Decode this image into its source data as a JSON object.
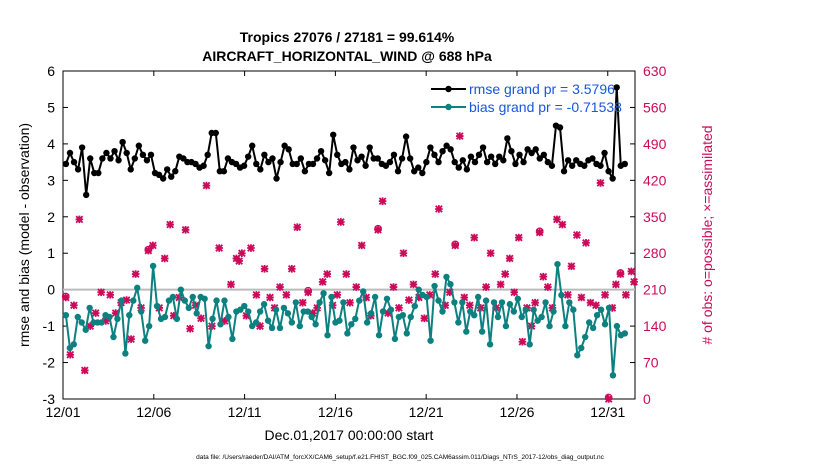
{
  "chart_data": {
    "type": "line",
    "title": "Tropics 27076 / 27181 = 99.614%",
    "subtitle": "AIRCRAFT_HORIZONTAL_WIND @ 688 hPa",
    "xlabel": "Dec.01,2017 00:00:00 start",
    "ylabel_left": "rmse and bias (model - observation)",
    "ylabel_right": "# of obs: o=possible; ×=assimilated",
    "xlim": [
      0,
      31.5
    ],
    "ylim_left": [
      -3,
      6
    ],
    "ylim_right": [
      0,
      630
    ],
    "x_ticks": [
      0,
      5,
      10,
      15,
      20,
      25,
      30
    ],
    "x_tick_labels": [
      "12/01",
      "12/06",
      "12/11",
      "12/16",
      "12/21",
      "12/26",
      "12/31"
    ],
    "y_ticks_left": [
      -3,
      -2,
      -1,
      0,
      1,
      2,
      3,
      4,
      5,
      6
    ],
    "y_tick_labels_left": [
      "-3",
      "-2",
      "-1",
      "0",
      "1",
      "2",
      "3",
      "4",
      "5",
      "6"
    ],
    "y_ticks_right": [
      0,
      70,
      140,
      210,
      280,
      350,
      420,
      490,
      560,
      630
    ],
    "y_tick_labels_right": [
      "0",
      "70",
      "140",
      "210",
      "280",
      "350",
      "420",
      "490",
      "560",
      "630"
    ],
    "zero_line": 0,
    "colors": {
      "rmse": "#000000",
      "bias": "#0d8080",
      "obs": "#cc0a5a",
      "zero": "#bbbbbb",
      "right_axis": "#cc0a5a"
    },
    "legend": [
      {
        "label": "rmse grand pr = 3.5796",
        "series": "rmse"
      },
      {
        "label": "bias grand pr = -0.71538",
        "series": "bias"
      }
    ],
    "rmse": [
      3.45,
      3.75,
      3.5,
      3.3,
      3.9,
      2.6,
      3.6,
      3.2,
      3.2,
      3.6,
      3.75,
      3.6,
      3.8,
      3.55,
      4.05,
      3.75,
      3.3,
      3.6,
      3.95,
      3.7,
      3.55,
      3.7,
      3.2,
      3.15,
      3.05,
      3.3,
      3.1,
      3.25,
      3.65,
      3.6,
      3.5,
      3.5,
      3.45,
      3.35,
      3.4,
      3.7,
      4.3,
      4.3,
      3.25,
      3.25,
      3.6,
      3.5,
      3.45,
      3.35,
      3.4,
      3.65,
      3.95,
      3.45,
      3.3,
      3.7,
      3.5,
      3.6,
      3.05,
      3.5,
      3.95,
      3.85,
      3.45,
      3.45,
      3.6,
      3.25,
      3.45,
      3.45,
      3.6,
      3.8,
      3.55,
      3.2,
      4.25,
      3.7,
      3.45,
      3.5,
      3.3,
      3.9,
      3.55,
      3.65,
      3.4,
      3.9,
      3.6,
      3.6,
      3.45,
      3.4,
      3.5,
      3.7,
      3.25,
      3.6,
      4.2,
      3.6,
      3.25,
      3.35,
      3.2,
      3.5,
      3.9,
      3.7,
      3.5,
      3.8,
      3.95,
      3.85,
      3.5,
      3.35,
      3.55,
      3.3,
      3.65,
      3.5,
      3.7,
      3.9,
      3.5,
      3.65,
      3.45,
      3.65,
      3.55,
      4.15,
      3.8,
      3.45,
      3.7,
      3.5,
      3.85,
      3.75,
      3.85,
      3.6,
      3.7,
      3.5,
      3.4,
      4.5,
      4.45,
      3.25,
      3.55,
      3.4,
      3.55,
      3.45,
      3.4,
      3.55,
      3.6,
      3.45,
      3.4,
      3.75,
      3.25,
      3.05,
      5.55,
      3.4,
      3.45
    ],
    "bias": [
      -0.7,
      -1.6,
      -1.5,
      -0.75,
      -0.9,
      -1.1,
      -0.5,
      -0.9,
      -0.9,
      -0.9,
      -0.7,
      -0.75,
      -1.3,
      -0.8,
      -0.3,
      -1.75,
      -0.7,
      -0.3,
      0.05,
      -0.6,
      -1.4,
      -1.0,
      0.65,
      -0.45,
      -0.8,
      -0.75,
      -0.3,
      -0.2,
      -0.8,
      0.0,
      -0.3,
      -0.5,
      -0.2,
      -0.65,
      -0.2,
      -0.25,
      -1.55,
      -0.8,
      -0.3,
      -0.95,
      -0.3,
      -0.75,
      -1.35,
      -0.6,
      -0.55,
      -0.45,
      -0.6,
      -1.0,
      -0.9,
      -0.6,
      -0.4,
      -0.85,
      -1.05,
      -0.55,
      -1.05,
      -0.5,
      -0.65,
      -0.9,
      -0.35,
      -1.0,
      -0.6,
      -0.6,
      -0.75,
      -0.95,
      -0.35,
      -0.1,
      -1.25,
      -0.2,
      -0.9,
      -0.85,
      -0.35,
      -1.2,
      -0.95,
      -0.8,
      -0.3,
      -0.05,
      -0.9,
      -0.65,
      -0.2,
      -1.25,
      -0.6,
      -0.25,
      -0.55,
      -1.35,
      -0.75,
      -0.7,
      -1.2,
      -0.75,
      -0.45,
      0.0,
      -0.15,
      -0.2,
      -1.4,
      0.1,
      -0.3,
      -0.6,
      0.35,
      0.15,
      -0.35,
      -0.9,
      -0.35,
      -1.15,
      -0.6,
      -0.7,
      -0.2,
      -1.15,
      -0.3,
      -1.5,
      -0.35,
      -0.75,
      -0.35,
      -1.0,
      -0.4,
      -0.6,
      -0.25,
      -0.75,
      -0.55,
      -1.5,
      -0.55,
      -0.85,
      -0.75,
      -0.35,
      -1.0,
      -0.6,
      0.7,
      -0.15,
      -1.0,
      -0.35,
      -0.55,
      -1.8,
      -1.6,
      -1.3,
      -0.9,
      -1.05,
      -0.7,
      -0.55,
      -0.95,
      -0.5,
      -2.35,
      -1.0,
      -1.25,
      -1.2
    ],
    "obs_assimilated": [
      [
        0.15,
        195
      ],
      [
        0.4,
        85
      ],
      [
        0.6,
        180
      ],
      [
        0.9,
        345
      ],
      [
        1.2,
        55
      ],
      [
        1.5,
        140
      ],
      [
        1.8,
        165
      ],
      [
        2.1,
        205
      ],
      [
        2.35,
        150
      ],
      [
        2.6,
        200
      ],
      [
        2.9,
        165
      ],
      [
        3.2,
        185
      ],
      [
        3.5,
        190
      ],
      [
        3.75,
        115
      ],
      [
        4.0,
        240
      ],
      [
        4.3,
        175
      ],
      [
        4.7,
        285
      ],
      [
        4.95,
        295
      ],
      [
        5.3,
        175
      ],
      [
        5.6,
        270
      ],
      [
        5.9,
        335
      ],
      [
        6.1,
        160
      ],
      [
        6.4,
        195
      ],
      [
        6.75,
        325
      ],
      [
        7.0,
        135
      ],
      [
        7.3,
        180
      ],
      [
        7.6,
        155
      ],
      [
        7.9,
        410
      ],
      [
        8.2,
        140
      ],
      [
        8.6,
        290
      ],
      [
        8.9,
        150
      ],
      [
        9.25,
        220
      ],
      [
        9.55,
        270
      ],
      [
        9.7,
        265
      ],
      [
        9.85,
        280
      ],
      [
        10.1,
        160
      ],
      [
        10.35,
        290
      ],
      [
        10.65,
        200
      ],
      [
        10.85,
        140
      ],
      [
        11.1,
        250
      ],
      [
        11.4,
        195
      ],
      [
        11.65,
        175
      ],
      [
        11.95,
        215
      ],
      [
        12.3,
        200
      ],
      [
        12.6,
        250
      ],
      [
        12.9,
        330
      ],
      [
        13.2,
        185
      ],
      [
        13.5,
        205
      ],
      [
        13.75,
        165
      ],
      [
        14.0,
        175
      ],
      [
        14.3,
        225
      ],
      [
        14.55,
        240
      ],
      [
        14.85,
        180
      ],
      [
        15.1,
        200
      ],
      [
        15.3,
        340
      ],
      [
        15.6,
        240
      ],
      [
        15.8,
        185
      ],
      [
        16.15,
        215
      ],
      [
        16.45,
        295
      ],
      [
        16.7,
        195
      ],
      [
        16.95,
        160
      ],
      [
        17.35,
        325
      ],
      [
        17.6,
        380
      ],
      [
        17.9,
        165
      ],
      [
        18.2,
        215
      ],
      [
        18.5,
        175
      ],
      [
        18.75,
        280
      ],
      [
        19.05,
        190
      ],
      [
        19.3,
        220
      ],
      [
        19.6,
        195
      ],
      [
        19.9,
        155
      ],
      [
        20.2,
        200
      ],
      [
        20.5,
        240
      ],
      [
        20.7,
        365
      ],
      [
        21.05,
        180
      ],
      [
        21.3,
        205
      ],
      [
        21.6,
        295
      ],
      [
        21.85,
        505
      ],
      [
        22.1,
        195
      ],
      [
        22.4,
        180
      ],
      [
        22.65,
        310
      ],
      [
        23.0,
        175
      ],
      [
        23.3,
        215
      ],
      [
        23.55,
        280
      ],
      [
        23.85,
        175
      ],
      [
        24.1,
        220
      ],
      [
        24.35,
        240
      ],
      [
        24.6,
        270
      ],
      [
        24.85,
        205
      ],
      [
        25.1,
        310
      ],
      [
        25.3,
        110
      ],
      [
        25.55,
        175
      ],
      [
        25.8,
        140
      ],
      [
        26.0,
        185
      ],
      [
        26.25,
        320
      ],
      [
        26.45,
        235
      ],
      [
        26.7,
        215
      ],
      [
        26.95,
        175
      ],
      [
        27.2,
        345
      ],
      [
        27.5,
        335
      ],
      [
        27.8,
        200
      ],
      [
        28.0,
        255
      ],
      [
        28.3,
        315
      ],
      [
        28.55,
        195
      ],
      [
        28.8,
        300
      ],
      [
        29.05,
        185
      ],
      [
        29.35,
        180
      ],
      [
        29.6,
        415
      ],
      [
        29.85,
        200
      ],
      [
        30.05,
        0
      ],
      [
        30.25,
        175
      ],
      [
        30.45,
        220
      ],
      [
        30.7,
        240
      ],
      [
        31.0,
        200
      ],
      [
        31.3,
        245
      ],
      [
        31.45,
        225
      ]
    ],
    "obs_possible": [
      [
        0.15,
        197
      ],
      [
        4.7,
        287
      ],
      [
        13.5,
        208
      ],
      [
        17.35,
        327
      ],
      [
        21.6,
        297
      ],
      [
        26.25,
        322
      ],
      [
        30.05,
        3
      ],
      [
        30.7,
        242
      ]
    ]
  },
  "footer": "data file: /Users/raeder/DAI/ATM_forcXX/CAM6_setup/f.e21.FHIST_BGC.f09_025.CAM6assim.011/Diags_NTrS_2017-12/obs_diag_output.nc"
}
